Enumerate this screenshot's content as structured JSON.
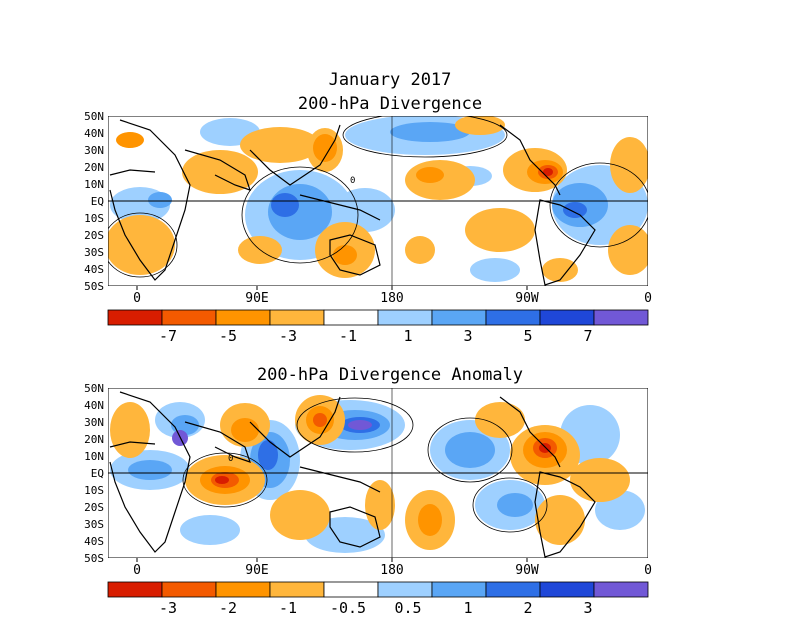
{
  "page": {
    "title": "January 2017"
  },
  "panels": [
    {
      "title": "200-hPa Divergence",
      "lat_labels": [
        "50N",
        "40N",
        "30N",
        "20N",
        "10N",
        "EQ",
        "10S",
        "20S",
        "30S",
        "40S",
        "50S"
      ],
      "lon_labels": [
        "0",
        "90E",
        "180",
        "90W",
        "0"
      ],
      "contour_label": "0",
      "colorbar": {
        "labels": [
          "-7",
          "-5",
          "-3",
          "-1",
          "1",
          "3",
          "5",
          "7"
        ],
        "colors": [
          "#d81d00",
          "#f35a00",
          "#ff9400",
          "#ffb63c",
          "#ffffff",
          "#9ed0ff",
          "#5aa6f5",
          "#2e6fe6",
          "#1f47d8",
          "#7158d6"
        ]
      }
    },
    {
      "title": "200-hPa Divergence Anomaly",
      "lat_labels": [
        "50N",
        "40N",
        "30N",
        "20N",
        "10N",
        "EQ",
        "10S",
        "20S",
        "30S",
        "40S",
        "50S"
      ],
      "lon_labels": [
        "0",
        "90E",
        "180",
        "90W",
        "0"
      ],
      "contour_label": "0",
      "colorbar": {
        "labels": [
          "-3",
          "-2",
          "-1",
          "-0.5",
          "0.5",
          "1",
          "2",
          "3"
        ],
        "colors": [
          "#d81d00",
          "#f35a00",
          "#ff9400",
          "#ffb63c",
          "#ffffff",
          "#9ed0ff",
          "#5aa6f5",
          "#2e6fe6",
          "#1f47d8",
          "#7158d6"
        ]
      }
    }
  ]
}
